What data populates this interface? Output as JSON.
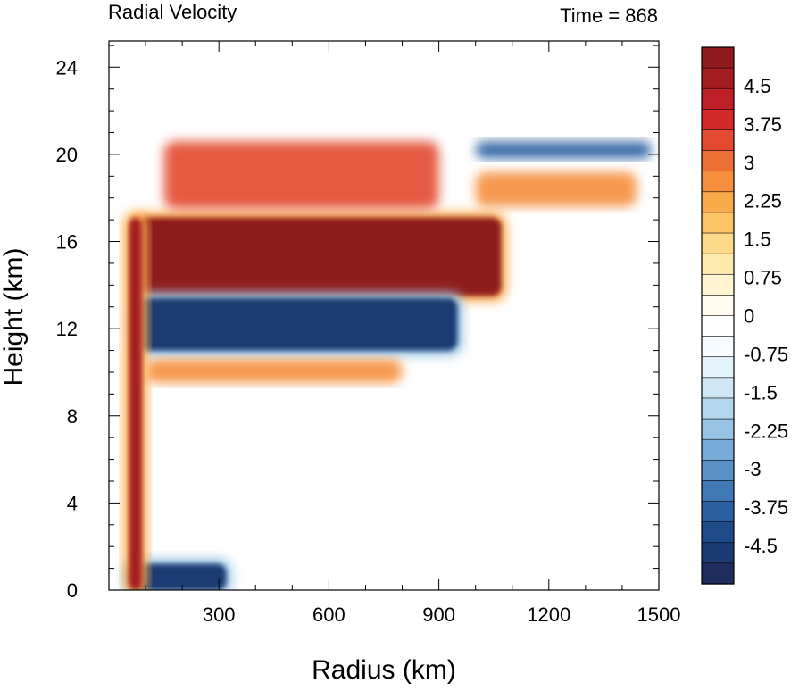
{
  "chart_data": {
    "type": "heatmap",
    "title": "Radial Velocity",
    "subtitle": "Time = 868",
    "xlabel": "Radius (km)",
    "ylabel": "Height (km)",
    "xlim": [
      0,
      1500
    ],
    "ylim": [
      0,
      25.2
    ],
    "xticks": [
      300,
      600,
      900,
      1200,
      1500
    ],
    "xtick_labels": [
      "300",
      "600",
      "900",
      "1200",
      "1500"
    ],
    "yticks": [
      0,
      4,
      8,
      12,
      16,
      20,
      24
    ],
    "ytick_labels": [
      "0",
      "4",
      "8",
      "12",
      "16",
      "20",
      "24"
    ],
    "colorbar": {
      "min": -5.25,
      "max": 5.25,
      "step": 0.375,
      "tick_values": [
        4.5,
        3.75,
        3,
        2.25,
        1.5,
        0.75,
        0,
        -0.75,
        -1.5,
        -2.25,
        -3,
        -3.75,
        -4.5
      ],
      "tick_labels": [
        "4.5",
        "3.75",
        "3",
        "2.25",
        "1.5",
        "0.75",
        "0",
        "-0.75",
        "-1.5",
        "-2.25",
        "-3",
        "-3.75",
        "-4.5"
      ],
      "colors_top_to_bottom": [
        "#8f1a1f",
        "#a51c22",
        "#bd2026",
        "#d3292a",
        "#e34a2f",
        "#ee6f35",
        "#f58f3d",
        "#f9ab4c",
        "#fcc467",
        "#fdd98a",
        "#feeaad",
        "#fff5d3",
        "#fffbee",
        "#ffffff",
        "#f5fbfe",
        "#e4f2fb",
        "#cfe6f5",
        "#b5d7ee",
        "#97c3e4",
        "#78acd8",
        "#5a92c8",
        "#4078b6",
        "#2c5fa2",
        "#1f4a8a",
        "#1a3a72",
        "#1d2e5e"
      ]
    },
    "features": [
      {
        "name": "strong outflow layer",
        "value": 5.25,
        "r": [
          80,
          1070
        ],
        "z": [
          13.5,
          17.1
        ]
      },
      {
        "name": "inflow layer below outflow",
        "value": -5.0,
        "r": [
          80,
          950
        ],
        "z": [
          11.0,
          13.4
        ]
      },
      {
        "name": "weak outflow layer",
        "value": 2.6,
        "r": [
          100,
          800
        ],
        "z": [
          9.5,
          10.6
        ]
      },
      {
        "name": "upper outflow patches",
        "value": 3.5,
        "r": [
          150,
          900
        ],
        "z": [
          17.5,
          20.6
        ]
      },
      {
        "name": "upper inflow streak",
        "value": -3.8,
        "r": [
          1000,
          1480
        ],
        "z": [
          19.8,
          20.6
        ]
      },
      {
        "name": "outer upper outflow",
        "value": 2.8,
        "r": [
          1000,
          1440
        ],
        "z": [
          17.6,
          19.2
        ]
      },
      {
        "name": "boundary layer inflow",
        "value": -5.0,
        "r": [
          55,
          320
        ],
        "z": [
          0,
          1.2
        ]
      },
      {
        "name": "eyewall updraft column",
        "value": 5.0,
        "r": [
          55,
          90
        ],
        "z": [
          0,
          17.1
        ]
      }
    ]
  }
}
